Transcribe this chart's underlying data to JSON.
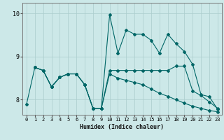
{
  "xlabel": "Humidex (Indice chaleur)",
  "bg_color": "#cce8e8",
  "line_color": "#006666",
  "grid_color": "#aacccc",
  "x_ticks": [
    0,
    1,
    2,
    3,
    4,
    5,
    6,
    7,
    8,
    9,
    10,
    11,
    12,
    13,
    14,
    15,
    16,
    17,
    18,
    19,
    20,
    21,
    22,
    23
  ],
  "y_ticks": [
    8,
    9,
    10
  ],
  "ylim": [
    7.65,
    10.25
  ],
  "xlim": [
    -0.5,
    23.5
  ],
  "line1_x": [
    0,
    1,
    2,
    3,
    4,
    5,
    6,
    7,
    8,
    9,
    10,
    11,
    12,
    13,
    14,
    15,
    16,
    17,
    18,
    19,
    20,
    21,
    22,
    23
  ],
  "line1_y": [
    7.9,
    8.75,
    8.68,
    8.3,
    8.52,
    8.6,
    8.6,
    8.35,
    7.8,
    7.8,
    8.68,
    8.68,
    8.68,
    8.68,
    8.68,
    8.68,
    8.68,
    8.68,
    8.78,
    8.78,
    8.2,
    8.1,
    7.95,
    7.8
  ],
  "line2_x": [
    1,
    2,
    3,
    4,
    5,
    6,
    7,
    8,
    9,
    10,
    11,
    12,
    13,
    14,
    15,
    16,
    17,
    18,
    19,
    20,
    21,
    22,
    23
  ],
  "line2_y": [
    8.75,
    8.68,
    8.3,
    8.52,
    8.6,
    8.6,
    8.35,
    7.8,
    7.8,
    8.6,
    8.5,
    8.45,
    8.4,
    8.35,
    8.25,
    8.15,
    8.08,
    8.0,
    7.92,
    7.85,
    7.8,
    7.75,
    7.72
  ],
  "line3_x": [
    1,
    2,
    3,
    4,
    5,
    6,
    7,
    8,
    9,
    10,
    11,
    12,
    13,
    14,
    15,
    16,
    17,
    18,
    19,
    20,
    21,
    22,
    23
  ],
  "line3_y": [
    8.75,
    8.68,
    8.3,
    8.52,
    8.6,
    8.6,
    8.35,
    7.8,
    7.8,
    9.97,
    9.08,
    9.62,
    9.52,
    9.52,
    9.38,
    9.08,
    9.52,
    9.3,
    9.12,
    8.82,
    8.12,
    8.07,
    7.78
  ]
}
